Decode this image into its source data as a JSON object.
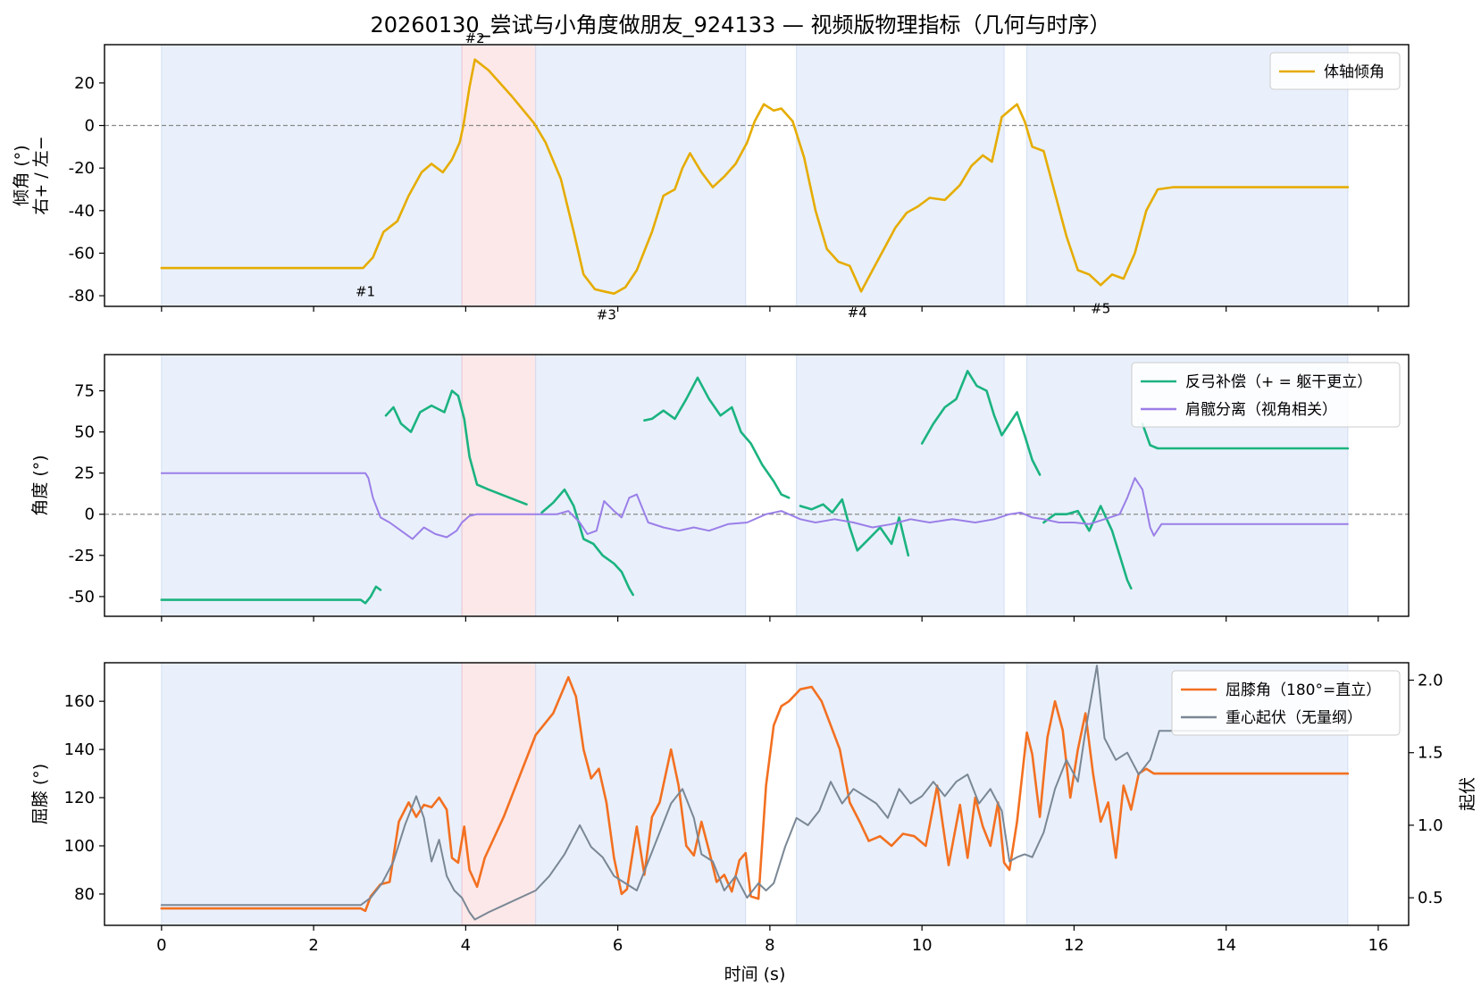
{
  "figure": {
    "title": "20260130_尝试与小角度做朋友_924133 — 视频版物理指标（几何与时序）",
    "xlabel": "时间 (s)"
  },
  "chart_data": [
    {
      "type": "line",
      "panel": "tilt",
      "ylabel_line1": "倾角 (°)",
      "ylabel_line2": "右+ / 左−",
      "ylim": [
        -85,
        38
      ],
      "yticks": [
        20,
        0,
        -20,
        -40,
        -60,
        -80
      ],
      "xlim": [
        -0.75,
        16.4
      ],
      "legend_position": "top-right",
      "zero_line": true,
      "series": [
        {
          "name": "体轴倾角",
          "color": "#E6AC00",
          "x": [
            0,
            2.65,
            2.78,
            2.92,
            3.1,
            3.25,
            3.42,
            3.55,
            3.7,
            3.82,
            3.92,
            3.97,
            4.05,
            4.12,
            4.3,
            4.6,
            4.9,
            5.05,
            5.25,
            5.42,
            5.55,
            5.7,
            5.82,
            5.95,
            6.1,
            6.25,
            6.45,
            6.6,
            6.75,
            6.85,
            6.95,
            7.1,
            7.25,
            7.4,
            7.55,
            7.7,
            7.8,
            7.92,
            8.05,
            8.15,
            8.3,
            8.45,
            8.6,
            8.75,
            8.9,
            9.05,
            9.2,
            9.35,
            9.5,
            9.65,
            9.8,
            9.95,
            10.1,
            10.3,
            10.5,
            10.65,
            10.8,
            10.92,
            11.05,
            11.15,
            11.25,
            11.35,
            11.45,
            11.6,
            11.75,
            11.9,
            12.05,
            12.2,
            12.35,
            12.5,
            12.65,
            12.8,
            12.95,
            13.1,
            13.3,
            15.6
          ],
          "values": [
            -67,
            -67,
            -62,
            -50,
            -45,
            -33,
            -22,
            -18,
            -22,
            -16,
            -8,
            0,
            18,
            31,
            26,
            14,
            1,
            -8,
            -25,
            -50,
            -70,
            -77,
            -78,
            -79,
            -76,
            -68,
            -50,
            -33,
            -30,
            -20,
            -13,
            -22,
            -29,
            -24,
            -18,
            -8,
            2,
            10,
            7,
            8,
            2,
            -15,
            -40,
            -58,
            -64,
            -66,
            -78,
            -68,
            -58,
            -48,
            -41,
            -38,
            -34,
            -35,
            -28,
            -19,
            -14,
            -17,
            4,
            7,
            10,
            2,
            -10,
            -12,
            -32,
            -52,
            -68,
            -70,
            -75,
            -70,
            -72,
            -60,
            -40,
            -30,
            -29,
            -29
          ]
        }
      ],
      "segments": [
        {
          "x0": 0,
          "x1": 3.95,
          "type": "blue"
        },
        {
          "x0": 3.95,
          "x1": 4.92,
          "type": "red"
        },
        {
          "x0": 4.92,
          "x1": 7.68,
          "type": "blue"
        },
        {
          "x0": 8.35,
          "x1": 11.08,
          "type": "blue"
        },
        {
          "x0": 11.38,
          "x1": 15.6,
          "type": "blue"
        }
      ],
      "annotations": [
        {
          "text": "#1",
          "x": 2.68,
          "y": -78
        },
        {
          "text": "#2",
          "x": 4.12,
          "y": 41
        },
        {
          "text": "#3",
          "x": 5.85,
          "y": -89
        },
        {
          "text": "#4",
          "x": 9.15,
          "y": -88
        },
        {
          "text": "#5",
          "x": 12.35,
          "y": -86
        }
      ]
    },
    {
      "type": "line",
      "panel": "angles",
      "ylabel": "角度 (°)",
      "ylim": [
        -62,
        97
      ],
      "yticks": [
        75,
        50,
        25,
        0,
        -25,
        -50
      ],
      "xlim": [
        -0.75,
        16.4
      ],
      "legend_position": "top-right",
      "zero_line": true,
      "series": [
        {
          "name": "反弓补偿（+ = 躯干更立）",
          "color": "#1BB380",
          "segments": [
            {
              "x": [
                0,
                2.62,
                2.68,
                2.75,
                2.82,
                2.88
              ],
              "values": [
                -52,
                -52,
                -54,
                -50,
                -44,
                -46
              ]
            },
            {
              "x": [
                2.95,
                3.05,
                3.15,
                3.28,
                3.4,
                3.55,
                3.72,
                3.82,
                3.9,
                3.98,
                4.05,
                4.15,
                4.3,
                4.8
              ],
              "values": [
                60,
                65,
                55,
                50,
                62,
                66,
                62,
                75,
                72,
                58,
                35,
                18,
                15,
                6
              ]
            },
            {
              "x": [
                5.0,
                5.15,
                5.3,
                5.42,
                5.55,
                5.68,
                5.8,
                5.95,
                6.05,
                6.15,
                6.2
              ],
              "values": [
                1,
                7,
                15,
                5,
                -15,
                -18,
                -25,
                -30,
                -35,
                -45,
                -49
              ]
            },
            {
              "x": [
                6.35,
                6.45,
                6.6,
                6.75,
                6.9,
                7.05,
                7.2,
                7.35,
                7.5,
                7.62,
                7.75,
                7.9,
                8.05,
                8.15,
                8.25
              ],
              "values": [
                57,
                58,
                63,
                58,
                70,
                83,
                70,
                60,
                65,
                50,
                43,
                30,
                20,
                12,
                10
              ]
            },
            {
              "x": [
                8.4,
                8.55,
                8.7,
                8.82,
                8.95,
                9.05,
                9.15,
                9.3,
                9.45,
                9.6,
                9.7,
                9.82
              ],
              "values": [
                5,
                3,
                6,
                1,
                9,
                -8,
                -22,
                -15,
                -8,
                -18,
                -2,
                -25
              ]
            },
            {
              "x": [
                10.0,
                10.15,
                10.3,
                10.45,
                10.6,
                10.72,
                10.85,
                10.95,
                11.05,
                11.15,
                11.25,
                11.35,
                11.45,
                11.55
              ],
              "values": [
                43,
                55,
                65,
                70,
                87,
                78,
                75,
                60,
                48,
                55,
                62,
                48,
                33,
                24
              ]
            },
            {
              "x": [
                11.6,
                11.75,
                11.9,
                12.05,
                12.2,
                12.35,
                12.5,
                12.6,
                12.7,
                12.75
              ],
              "values": [
                -5,
                0,
                0,
                2,
                -10,
                5,
                -10,
                -25,
                -40,
                -45
              ]
            },
            {
              "x": [
                12.9,
                13.0,
                13.1,
                15.6
              ],
              "values": [
                55,
                42,
                40,
                40
              ]
            }
          ]
        },
        {
          "name": "肩髋分离（视角相关）",
          "color": "#9B7FE8",
          "x": [
            0,
            2.62,
            2.68,
            2.72,
            2.78,
            2.88,
            3.0,
            3.15,
            3.3,
            3.45,
            3.6,
            3.75,
            3.88,
            3.95,
            4.05,
            4.15,
            4.3,
            4.9,
            5.2,
            5.35,
            5.5,
            5.6,
            5.72,
            5.82,
            5.95,
            6.05,
            6.15,
            6.25,
            6.4,
            6.6,
            6.8,
            7.0,
            7.2,
            7.45,
            7.7,
            7.95,
            8.15,
            8.4,
            8.6,
            8.85,
            9.1,
            9.35,
            9.6,
            9.85,
            10.1,
            10.4,
            10.7,
            10.95,
            11.15,
            11.3,
            11.45,
            11.6,
            11.8,
            12.0,
            12.2,
            12.4,
            12.6,
            12.7,
            12.8,
            12.9,
            13.0,
            13.05,
            13.15,
            15.6
          ],
          "values": [
            25,
            25,
            25,
            22,
            10,
            -2,
            -5,
            -10,
            -15,
            -8,
            -12,
            -14,
            -10,
            -5,
            -1,
            0,
            0,
            0,
            0,
            2,
            -5,
            -12,
            -10,
            8,
            2,
            -2,
            10,
            12,
            -5,
            -8,
            -10,
            -8,
            -10,
            -6,
            -5,
            0,
            2,
            -3,
            -5,
            -3,
            -5,
            -8,
            -6,
            -3,
            -5,
            -3,
            -5,
            -3,
            0,
            1,
            -2,
            -3,
            -5,
            -5,
            -6,
            -3,
            0,
            10,
            22,
            15,
            -8,
            -13,
            -6,
            -6
          ]
        }
      ],
      "segments": [
        {
          "x0": 0,
          "x1": 3.95,
          "type": "blue"
        },
        {
          "x0": 3.95,
          "x1": 4.92,
          "type": "red"
        },
        {
          "x0": 4.92,
          "x1": 7.68,
          "type": "blue"
        },
        {
          "x0": 8.35,
          "x1": 11.08,
          "type": "blue"
        },
        {
          "x0": 11.38,
          "x1": 15.6,
          "type": "blue"
        }
      ]
    },
    {
      "type": "line",
      "panel": "knee",
      "ylabel": "屈膝 (°)",
      "ylabel_right": "起伏",
      "ylim": [
        67,
        176
      ],
      "yticks": [
        160,
        140,
        120,
        100,
        80
      ],
      "ylim_right": [
        0.31,
        2.12
      ],
      "yticks_right": [
        2.0,
        1.5,
        1.0,
        0.5
      ],
      "xlim": [
        -0.75,
        16.4
      ],
      "xticks": [
        0,
        2,
        4,
        6,
        8,
        10,
        12,
        14,
        16
      ],
      "legend_position": "top-right",
      "series": [
        {
          "name": "屈膝角（180°=直立）",
          "color": "#F37021",
          "axis": "left",
          "x": [
            0,
            2.62,
            2.68,
            2.75,
            2.88,
            3.0,
            3.12,
            3.25,
            3.35,
            3.45,
            3.55,
            3.65,
            3.75,
            3.82,
            3.9,
            3.98,
            4.05,
            4.15,
            4.25,
            4.5,
            4.92,
            5.15,
            5.35,
            5.45,
            5.55,
            5.65,
            5.75,
            5.85,
            5.95,
            6.05,
            6.12,
            6.25,
            6.35,
            6.45,
            6.55,
            6.7,
            6.8,
            6.9,
            7.0,
            7.1,
            7.2,
            7.3,
            7.4,
            7.5,
            7.6,
            7.68,
            7.75,
            7.85,
            7.95,
            8.05,
            8.15,
            8.25,
            8.4,
            8.55,
            8.68,
            8.8,
            8.92,
            9.05,
            9.18,
            9.3,
            9.45,
            9.6,
            9.75,
            9.9,
            10.05,
            10.2,
            10.35,
            10.5,
            10.6,
            10.7,
            10.8,
            10.9,
            11.0,
            11.08,
            11.15,
            11.25,
            11.38,
            11.45,
            11.55,
            11.65,
            11.75,
            11.85,
            11.95,
            12.05,
            12.15,
            12.25,
            12.35,
            12.45,
            12.55,
            12.65,
            12.75,
            12.85,
            12.95,
            13.05,
            13.12,
            15.6
          ],
          "values": [
            74,
            74,
            73,
            79,
            84,
            85,
            110,
            118,
            112,
            117,
            116,
            120,
            115,
            95,
            93,
            108,
            90,
            83,
            95,
            112,
            146,
            155,
            170,
            162,
            140,
            128,
            132,
            118,
            95,
            80,
            82,
            108,
            88,
            112,
            118,
            140,
            125,
            100,
            96,
            110,
            98,
            85,
            88,
            81,
            94,
            97,
            79,
            78,
            125,
            150,
            158,
            160,
            165,
            166,
            160,
            150,
            140,
            118,
            110,
            102,
            104,
            100,
            105,
            104,
            100,
            125,
            92,
            117,
            95,
            120,
            108,
            100,
            118,
            93,
            90,
            110,
            147,
            138,
            112,
            145,
            160,
            148,
            120,
            140,
            155,
            130,
            110,
            118,
            95,
            125,
            115,
            130,
            132,
            130,
            130,
            130
          ]
        },
        {
          "name": "重心起伏（无量纲）",
          "color": "#7A8795",
          "axis": "right",
          "x": [
            0,
            2.62,
            2.75,
            2.9,
            3.05,
            3.2,
            3.35,
            3.45,
            3.55,
            3.65,
            3.75,
            3.85,
            3.95,
            4.05,
            4.12,
            4.3,
            4.92,
            5.1,
            5.3,
            5.5,
            5.65,
            5.8,
            5.95,
            6.1,
            6.25,
            6.4,
            6.55,
            6.7,
            6.85,
            7.0,
            7.1,
            7.25,
            7.4,
            7.55,
            7.7,
            7.85,
            7.95,
            8.05,
            8.2,
            8.35,
            8.5,
            8.65,
            8.8,
            8.95,
            9.1,
            9.25,
            9.4,
            9.55,
            9.7,
            9.85,
            10.0,
            10.15,
            10.3,
            10.45,
            10.6,
            10.75,
            10.9,
            11.05,
            11.15,
            11.25,
            11.35,
            11.45,
            11.6,
            11.75,
            11.9,
            12.05,
            12.15,
            12.3,
            12.4,
            12.55,
            12.7,
            12.85,
            13.0,
            13.12,
            15.6
          ],
          "values": [
            0.45,
            0.45,
            0.5,
            0.6,
            0.75,
            1.0,
            1.2,
            1.05,
            0.75,
            0.9,
            0.65,
            0.55,
            0.5,
            0.4,
            0.35,
            0.4,
            0.55,
            0.65,
            0.8,
            1.0,
            0.85,
            0.78,
            0.65,
            0.6,
            0.55,
            0.75,
            0.95,
            1.15,
            1.25,
            1.05,
            0.8,
            0.75,
            0.55,
            0.65,
            0.5,
            0.6,
            0.55,
            0.6,
            0.85,
            1.05,
            1.0,
            1.1,
            1.3,
            1.15,
            1.25,
            1.2,
            1.15,
            1.05,
            1.25,
            1.15,
            1.2,
            1.3,
            1.2,
            1.3,
            1.35,
            1.15,
            1.25,
            1.1,
            0.75,
            0.78,
            0.8,
            0.78,
            0.95,
            1.25,
            1.45,
            1.3,
            1.65,
            2.1,
            1.6,
            1.45,
            1.5,
            1.35,
            1.45,
            1.65,
            1.65
          ]
        }
      ],
      "segments": [
        {
          "x0": 0,
          "x1": 3.95,
          "type": "blue"
        },
        {
          "x0": 3.95,
          "x1": 4.92,
          "type": "red"
        },
        {
          "x0": 4.92,
          "x1": 7.68,
          "type": "blue"
        },
        {
          "x0": 8.35,
          "x1": 11.08,
          "type": "blue"
        },
        {
          "x0": 11.38,
          "x1": 15.6,
          "type": "blue"
        }
      ]
    }
  ],
  "colors": {
    "segment_blue": "#E9F0FB",
    "segment_red": "#FCE8E8",
    "zero_line": "#8A8A8A"
  }
}
